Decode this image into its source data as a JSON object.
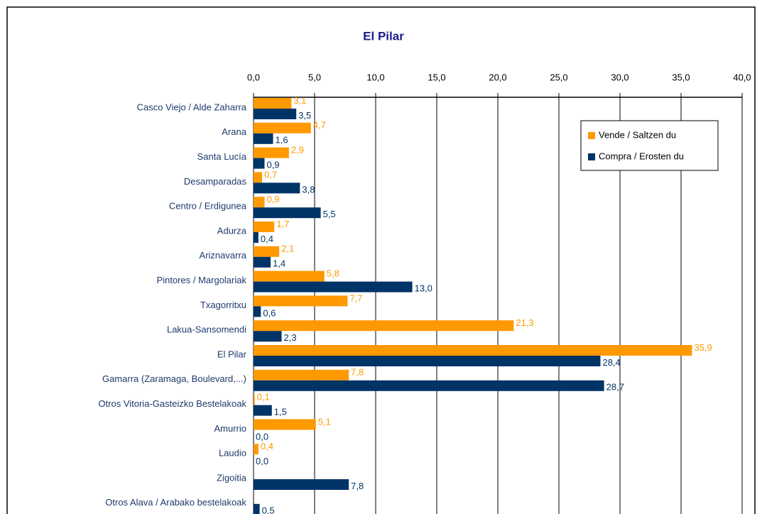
{
  "chart_data": {
    "type": "bar",
    "orientation": "horizontal",
    "title": "El Pilar",
    "categories": [
      "Casco Viejo / Alde Zaharra",
      "Arana",
      "Santa Lucía",
      "Desamparadas",
      "Centro / Erdigunea",
      "Adurza",
      "Ariznavarra",
      "Pintores / Margolariak",
      "Txagorritxu",
      "Lakua-Sansomendi",
      "El Pilar",
      "Gamarra (Zaramaga, Boulevard,...)",
      "Otros Vitoria-Gasteizko Bestelakoak",
      "Amurrio",
      "Laudio",
      "Zigoitia",
      "Otros Alava / Arabako bestelakoak"
    ],
    "series": [
      {
        "name": "Vende / Saltzen du",
        "color": "#FF9900",
        "values": [
          3.1,
          4.7,
          2.9,
          0.7,
          0.9,
          1.7,
          2.1,
          5.8,
          7.7,
          21.3,
          35.9,
          7.8,
          0.1,
          5.1,
          0.4,
          null,
          null
        ],
        "value_labels": [
          "3,1",
          "4,7",
          "2,9",
          "0,7",
          "0,9",
          "1,7",
          "2,1",
          "5,8",
          "7,7",
          "21,3",
          "35,9",
          "7,8",
          "0,1",
          "5,1",
          "0,4",
          null,
          null
        ]
      },
      {
        "name": "Compra / Erosten du",
        "color": "#003366",
        "values": [
          3.5,
          1.6,
          0.9,
          3.8,
          5.5,
          0.4,
          1.4,
          13.0,
          0.6,
          2.3,
          28.4,
          28.7,
          1.5,
          0.0,
          0.0,
          7.8,
          0.5
        ],
        "value_labels": [
          "3,5",
          "1,6",
          "0,9",
          "3,8",
          "5,5",
          "0,4",
          "1,4",
          "13,0",
          "0,6",
          "2,3",
          "28,4",
          "28,7",
          "1,5",
          "0,0",
          "0,0",
          "7,8",
          "0,5"
        ]
      }
    ],
    "xlim": [
      0,
      40
    ],
    "xticks": [
      {
        "value": 0,
        "label": "0,0"
      },
      {
        "value": 5,
        "label": "5,0"
      },
      {
        "value": 10,
        "label": "10,0"
      },
      {
        "value": 15,
        "label": "15,0"
      },
      {
        "value": 20,
        "label": "20,0"
      },
      {
        "value": 25,
        "label": "25,0"
      },
      {
        "value": 30,
        "label": "30,0"
      },
      {
        "value": 35,
        "label": "35,0"
      },
      {
        "value": 40,
        "label": "40,0"
      }
    ],
    "grid": true
  }
}
